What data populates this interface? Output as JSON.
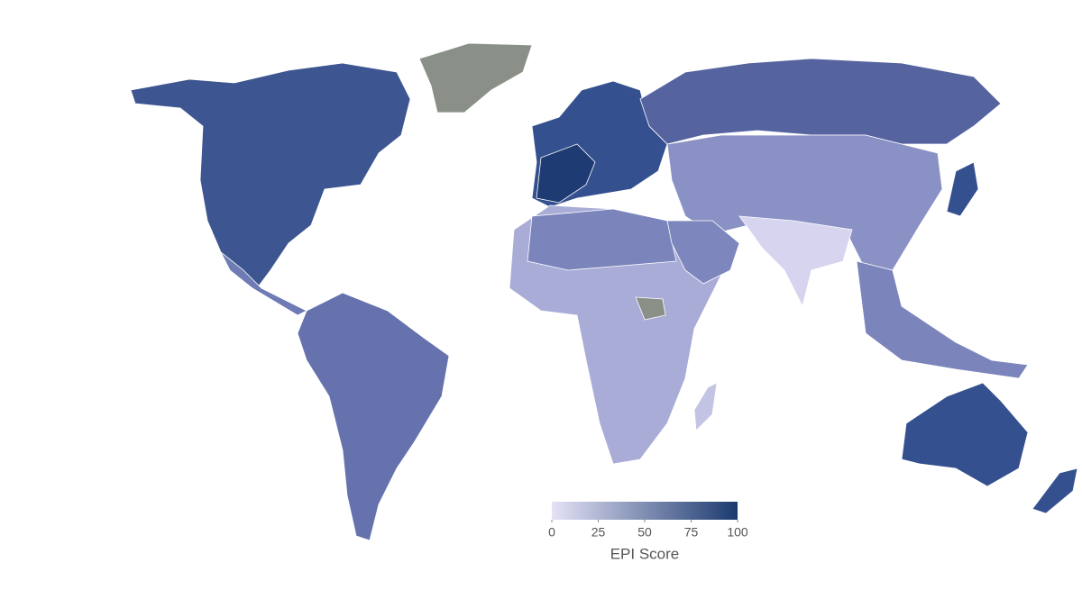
{
  "legend": {
    "title": "EPI Score",
    "range": [
      0,
      100
    ],
    "ticks": [
      0,
      25,
      50,
      75,
      100
    ],
    "colors": [
      "#e4e2f6",
      "#1b3a6f"
    ]
  }
}
